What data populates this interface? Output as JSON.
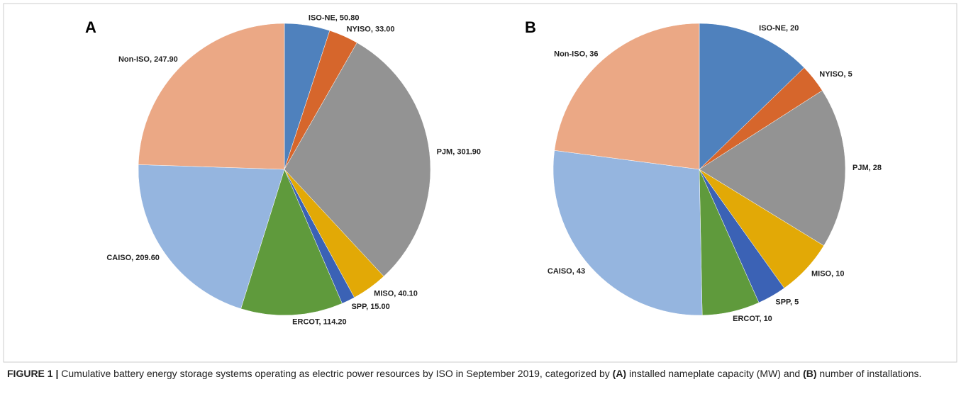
{
  "chart_data": [
    {
      "type": "pie",
      "title": "A",
      "categories": [
        "ISO-NE",
        "NYISO",
        "PJM",
        "MISO",
        "SPP",
        "ERCOT",
        "CAISO",
        "Non-ISO"
      ],
      "values": [
        50.8,
        33.0,
        301.9,
        40.1,
        15.0,
        114.2,
        209.6,
        247.9
      ],
      "value_labels": [
        "50.80",
        "33.00",
        "301.90",
        "40.10",
        "15.00",
        "114.20",
        "209.60",
        "247.90"
      ],
      "label_separator": ", ",
      "colors": [
        "#4f81bd",
        "#d6662c",
        "#939393",
        "#e2a906",
        "#3b62b5",
        "#5f9a3c",
        "#95b5df",
        "#eba885"
      ]
    },
    {
      "type": "pie",
      "title": "B",
      "categories": [
        "ISO-NE",
        "NYISO",
        "PJM",
        "MISO",
        "SPP",
        "ERCOT",
        "CAISO",
        "Non-ISO"
      ],
      "values": [
        20,
        5,
        28,
        10,
        5,
        10,
        43,
        36
      ],
      "label_separator": ", ",
      "colors": [
        "#4f81bd",
        "#d6662c",
        "#939393",
        "#e2a906",
        "#3b62b5",
        "#5f9a3c",
        "#95b5df",
        "#eba885"
      ]
    }
  ],
  "caption": [
    {
      "text": "FIGURE 1 | ",
      "bold": true
    },
    {
      "text": "Cumulative battery energy storage systems operating as electric power resources by ISO in September 2019, categorized by ",
      "bold": false
    },
    {
      "text": "(A)",
      "bold": true
    },
    {
      "text": " installed nameplate capacity (MW) and ",
      "bold": false
    },
    {
      "text": "(B)",
      "bold": true
    },
    {
      "text": " number of installations.",
      "bold": false
    }
  ]
}
